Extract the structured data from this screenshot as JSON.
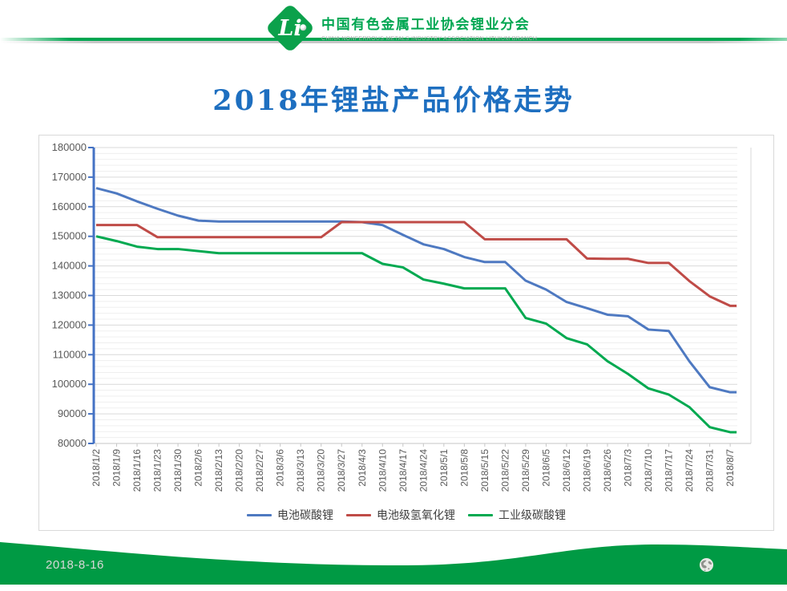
{
  "header": {
    "logo_text": "Li",
    "org_cn": "中国有色金属工业协会锂业分会",
    "org_en": "CHINA NONFERROUS METALS INDUSTRY ASSOCIATION LITHIUM BRANCH"
  },
  "title": "2018年锂盐产品价格走势",
  "footer": {
    "date": "2018-8-16"
  },
  "colors": {
    "brand_green": "#00A651",
    "footer_green": "#009A44",
    "title_blue": "#1E6FC0"
  },
  "chart_data": {
    "type": "line",
    "title": "2018年锂盐产品价格走势",
    "categories": [
      "2018/1/2",
      "2018/1/9",
      "2018/1/16",
      "2018/1/23",
      "2018/1/30",
      "2018/2/6",
      "2018/2/13",
      "2018/2/20",
      "2018/2/27",
      "2018/3/6",
      "2018/3/13",
      "2018/3/20",
      "2018/3/27",
      "2018/4/3",
      "2018/4/10",
      "2018/4/17",
      "2018/4/24",
      "2018/5/1",
      "2018/5/8",
      "2018/5/15",
      "2018/5/22",
      "2018/5/29",
      "2018/6/5",
      "2018/6/12",
      "2018/6/19",
      "2018/6/26",
      "2018/7/3",
      "2018/7/10",
      "2018/7/17",
      "2018/7/24",
      "2018/7/31",
      "2018/8/7"
    ],
    "series": [
      {
        "name": "电池碳酸锂",
        "color": "#4E79C1",
        "values": [
          166300,
          164500,
          161800,
          159300,
          157000,
          155300,
          155000,
          155000,
          155000,
          155000,
          155000,
          155000,
          155000,
          154800,
          153800,
          150500,
          147300,
          145700,
          143000,
          141300,
          141300,
          135000,
          132000,
          127800,
          125700,
          123500,
          123000,
          118500,
          118000,
          107800,
          99000,
          97300
        ]
      },
      {
        "name": "电池级氢氧化锂",
        "color": "#BF4B47",
        "values": [
          153800,
          153800,
          153800,
          149700,
          149700,
          149700,
          149700,
          149700,
          149700,
          149700,
          149700,
          149700,
          154800,
          154800,
          154800,
          154800,
          154800,
          154800,
          154800,
          149000,
          149000,
          149000,
          149000,
          149000,
          142500,
          142400,
          142400,
          141000,
          141000,
          134900,
          129700,
          126500
        ]
      },
      {
        "name": "工业级碳酸锂",
        "color": "#00A950",
        "values": [
          150000,
          148400,
          146500,
          145700,
          145700,
          145000,
          144300,
          144300,
          144300,
          144300,
          144300,
          144300,
          144300,
          144300,
          140700,
          139500,
          135400,
          134000,
          132400,
          132400,
          132400,
          122400,
          120500,
          115600,
          113500,
          107800,
          103500,
          98600,
          96500,
          92300,
          85500,
          83800
        ]
      }
    ],
    "ylim": [
      80000,
      180000
    ],
    "ytick_step": 10000,
    "minor_step": 2000,
    "grid": true,
    "legend_position": "bottom",
    "axis_color": "#4472C4",
    "label_color": "#595959"
  }
}
